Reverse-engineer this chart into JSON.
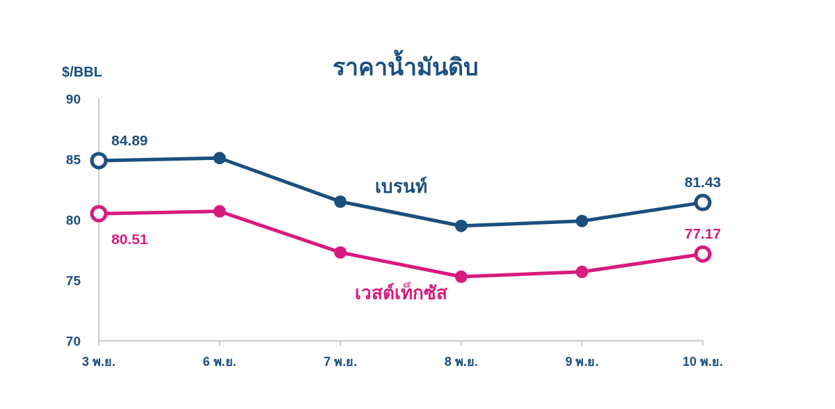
{
  "chart_data": {
    "type": "line",
    "title": "ราคาน้ำมันดิบ",
    "ylabel": "$/BBL",
    "categories": [
      "3 พ.ย.",
      "6 พ.ย.",
      "7 พ.ย.",
      "8 พ.ย.",
      "9 พ.ย.",
      "10 พ.ย."
    ],
    "series": [
      {
        "name": "เบรนท์",
        "color": "#1b4f7e",
        "values": [
          84.89,
          85.1,
          81.5,
          79.5,
          79.9,
          81.43
        ],
        "value_labels": [
          "84.89",
          null,
          null,
          null,
          null,
          "81.43"
        ]
      },
      {
        "name": "เวสต์เท็กซัส",
        "color": "#d81b7d",
        "values": [
          80.51,
          80.7,
          77.3,
          75.3,
          75.7,
          77.17
        ],
        "value_labels": [
          "80.51",
          null,
          null,
          null,
          null,
          "77.17"
        ]
      }
    ],
    "ylim": [
      70,
      90
    ],
    "yticks": [
      70,
      75,
      80,
      85,
      90
    ],
    "grid": false,
    "marker": "circle",
    "line_style": "solid"
  }
}
